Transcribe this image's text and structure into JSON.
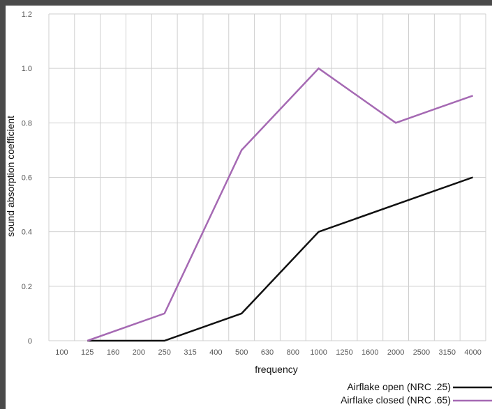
{
  "chart_data": {
    "type": "line",
    "title": "",
    "xlabel": "frequency",
    "ylabel": "sound absorption coefficient",
    "categories": [
      "100",
      "125",
      "160",
      "200",
      "250",
      "315",
      "400",
      "500",
      "630",
      "800",
      "1000",
      "1250",
      "1600",
      "2000",
      "2500",
      "3150",
      "4000"
    ],
    "ylim": [
      0,
      1.2
    ],
    "yticks": [
      "0",
      "0.2",
      "0.4",
      "0.6",
      "0.8",
      "1.0",
      "1.2"
    ],
    "grid": true,
    "legend_position": "bottom-right",
    "series": [
      {
        "name": "Airflake open (NRC .25)",
        "color": "#111111",
        "points": [
          [
            "125",
            0
          ],
          [
            "250",
            0
          ],
          [
            "500",
            0.1
          ],
          [
            "1000",
            0.4
          ],
          [
            "2000",
            0.5
          ],
          [
            "4000",
            0.6
          ]
        ]
      },
      {
        "name": "Airflake closed (NRC .65)",
        "color": "#a569b3",
        "points": [
          [
            "125",
            0
          ],
          [
            "250",
            0.1
          ],
          [
            "500",
            0.7
          ],
          [
            "1000",
            1.0
          ],
          [
            "2000",
            0.8
          ],
          [
            "4000",
            0.9
          ]
        ]
      }
    ]
  }
}
